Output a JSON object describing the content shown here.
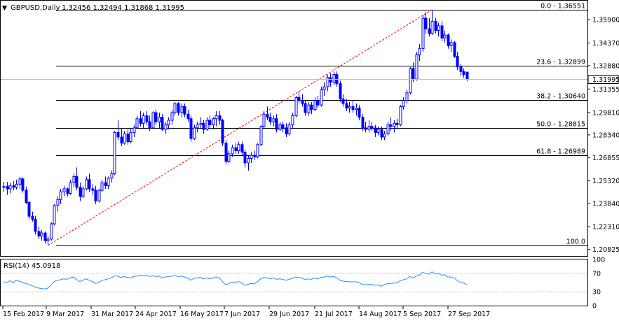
{
  "header": {
    "symbol_label": "GBPUSD,Daily",
    "ohlc": "1.32456 1.32494 1.31868 1.31995",
    "collapse_icon": "triangle-down-icon"
  },
  "rsi_header": {
    "label": "RSI(14) 45.0918"
  },
  "colors": {
    "candle": "#0000ff",
    "trendline": "#ff0000",
    "rsi": "#1e90ff",
    "fib": "#000000",
    "current_price_line": "#c0c0c0"
  },
  "current_price": {
    "value": 1.31995,
    "label": "1.31995"
  },
  "chart_data": {
    "type": "candlestick",
    "symbol": "GBPUSD",
    "timeframe": "Daily",
    "ylim": [
      1.2039,
      1.3715
    ],
    "y_ticks": [
      {
        "value": 1.359,
        "label": "1.35900"
      },
      {
        "value": 1.3437,
        "label": "1.34370"
      },
      {
        "value": 1.3288,
        "label": "1.32880"
      },
      {
        "value": 1.3135,
        "label": "1.31355"
      },
      {
        "value": 1.2981,
        "label": "1.29810"
      },
      {
        "value": 1.2834,
        "label": "1.28340"
      },
      {
        "value": 1.2685,
        "label": "1.26855"
      },
      {
        "value": 1.2532,
        "label": "1.25320"
      },
      {
        "value": 1.2384,
        "label": "1.23840"
      },
      {
        "value": 1.2231,
        "label": "1.22310"
      },
      {
        "value": 1.2082,
        "label": "1.20825"
      }
    ],
    "x_ticks": [
      "15 Feb 2017",
      "9 Mar 2017",
      "31 Mar 2017",
      "24 Apr 2017",
      "16 May 2017",
      "7 Jun 2017",
      "29 Jun 2017",
      "21 Jul 2017",
      "14 Aug 2017",
      "5 Sep 2017",
      "27 Sep 2017"
    ],
    "candles": [
      [
        1.249,
        1.2525,
        1.246,
        1.2495
      ],
      [
        1.2495,
        1.2525,
        1.244,
        1.248
      ],
      [
        1.248,
        1.252,
        1.245,
        1.25
      ],
      [
        1.25,
        1.253,
        1.247,
        1.249
      ],
      [
        1.249,
        1.254,
        1.2475,
        1.251
      ],
      [
        1.251,
        1.256,
        1.248,
        1.2545
      ],
      [
        1.2545,
        1.2555,
        1.2455,
        1.247
      ],
      [
        1.247,
        1.2495,
        1.238,
        1.239
      ],
      [
        1.239,
        1.24,
        1.228,
        1.23
      ],
      [
        1.23,
        1.233,
        1.2265,
        1.228
      ],
      [
        1.228,
        1.23,
        1.218,
        1.22
      ],
      [
        1.22,
        1.223,
        1.215,
        1.217
      ],
      [
        1.217,
        1.221,
        1.214,
        1.219
      ],
      [
        1.219,
        1.22,
        1.212,
        1.214
      ],
      [
        1.214,
        1.217,
        1.211,
        1.215
      ],
      [
        1.215,
        1.226,
        1.214,
        1.225
      ],
      [
        1.225,
        1.238,
        1.224,
        1.237
      ],
      [
        1.237,
        1.243,
        1.233,
        1.241
      ],
      [
        1.241,
        1.248,
        1.238,
        1.246
      ],
      [
        1.246,
        1.25,
        1.243,
        1.248
      ],
      [
        1.248,
        1.249,
        1.243,
        1.245
      ],
      [
        1.245,
        1.254,
        1.244,
        1.252
      ],
      [
        1.252,
        1.258,
        1.249,
        1.256
      ],
      [
        1.256,
        1.262,
        1.247,
        1.249
      ],
      [
        1.249,
        1.252,
        1.24,
        1.243
      ],
      [
        1.243,
        1.25,
        1.242,
        1.248
      ],
      [
        1.248,
        1.256,
        1.247,
        1.254
      ],
      [
        1.254,
        1.258,
        1.246,
        1.248
      ],
      [
        1.248,
        1.251,
        1.244,
        1.247
      ],
      [
        1.247,
        1.25,
        1.238,
        1.24
      ],
      [
        1.24,
        1.248,
        1.239,
        1.247
      ],
      [
        1.247,
        1.254,
        1.246,
        1.252
      ],
      [
        1.252,
        1.256,
        1.248,
        1.25
      ],
      [
        1.25,
        1.256,
        1.248,
        1.255
      ],
      [
        1.255,
        1.26,
        1.252,
        1.258
      ],
      [
        1.258,
        1.286,
        1.257,
        1.285
      ],
      [
        1.285,
        1.293,
        1.28,
        1.282
      ],
      [
        1.282,
        1.288,
        1.276,
        1.278
      ],
      [
        1.278,
        1.286,
        1.277,
        1.284
      ],
      [
        1.284,
        1.287,
        1.277,
        1.279
      ],
      [
        1.279,
        1.288,
        1.278,
        1.285
      ],
      [
        1.285,
        1.29,
        1.282,
        1.288
      ],
      [
        1.288,
        1.296,
        1.287,
        1.294
      ],
      [
        1.294,
        1.299,
        1.289,
        1.291
      ],
      [
        1.291,
        1.298,
        1.288,
        1.296
      ],
      [
        1.296,
        1.299,
        1.29,
        1.292
      ],
      [
        1.292,
        1.296,
        1.286,
        1.288
      ],
      [
        1.288,
        1.299,
        1.287,
        1.298
      ],
      [
        1.298,
        1.3,
        1.29,
        1.292
      ],
      [
        1.292,
        1.298,
        1.288,
        1.295
      ],
      [
        1.295,
        1.297,
        1.286,
        1.287
      ],
      [
        1.287,
        1.292,
        1.284,
        1.29
      ],
      [
        1.29,
        1.295,
        1.287,
        1.293
      ],
      [
        1.293,
        1.3,
        1.29,
        1.298
      ],
      [
        1.298,
        1.305,
        1.296,
        1.304
      ],
      [
        1.304,
        1.305,
        1.296,
        1.298
      ],
      [
        1.298,
        1.304,
        1.295,
        1.302
      ],
      [
        1.302,
        1.304,
        1.295,
        1.297
      ],
      [
        1.297,
        1.3,
        1.292,
        1.294
      ],
      [
        1.294,
        1.296,
        1.279,
        1.281
      ],
      [
        1.281,
        1.29,
        1.28,
        1.288
      ],
      [
        1.288,
        1.292,
        1.285,
        1.29
      ],
      [
        1.29,
        1.295,
        1.288,
        1.291
      ],
      [
        1.291,
        1.293,
        1.284,
        1.287
      ],
      [
        1.287,
        1.295,
        1.286,
        1.293
      ],
      [
        1.293,
        1.296,
        1.288,
        1.29
      ],
      [
        1.29,
        1.295,
        1.287,
        1.294
      ],
      [
        1.294,
        1.299,
        1.289,
        1.296
      ],
      [
        1.296,
        1.299,
        1.29,
        1.293
      ],
      [
        1.293,
        1.294,
        1.276,
        1.278
      ],
      [
        1.278,
        1.28,
        1.264,
        1.266
      ],
      [
        1.266,
        1.273,
        1.265,
        1.271
      ],
      [
        1.271,
        1.277,
        1.269,
        1.275
      ],
      [
        1.275,
        1.278,
        1.271,
        1.273
      ],
      [
        1.273,
        1.279,
        1.271,
        1.277
      ],
      [
        1.277,
        1.279,
        1.27,
        1.272
      ],
      [
        1.272,
        1.274,
        1.262,
        1.265
      ],
      [
        1.265,
        1.27,
        1.26,
        1.268
      ],
      [
        1.268,
        1.272,
        1.265,
        1.27
      ],
      [
        1.27,
        1.273,
        1.267,
        1.269
      ],
      [
        1.269,
        1.278,
        1.268,
        1.277
      ],
      [
        1.277,
        1.29,
        1.276,
        1.289
      ],
      [
        1.289,
        1.299,
        1.287,
        1.297
      ],
      [
        1.297,
        1.302,
        1.293,
        1.295
      ],
      [
        1.295,
        1.298,
        1.29,
        1.292
      ],
      [
        1.292,
        1.296,
        1.289,
        1.294
      ],
      [
        1.294,
        1.297,
        1.285,
        1.287
      ],
      [
        1.287,
        1.292,
        1.286,
        1.29
      ],
      [
        1.29,
        1.292,
        1.285,
        1.288
      ],
      [
        1.288,
        1.291,
        1.282,
        1.284
      ],
      [
        1.284,
        1.292,
        1.283,
        1.29
      ],
      [
        1.29,
        1.298,
        1.288,
        1.296
      ],
      [
        1.296,
        1.309,
        1.295,
        1.308
      ],
      [
        1.308,
        1.312,
        1.304,
        1.306
      ],
      [
        1.306,
        1.31,
        1.302,
        1.304
      ],
      [
        1.304,
        1.306,
        1.296,
        1.298
      ],
      [
        1.298,
        1.305,
        1.296,
        1.303
      ],
      [
        1.303,
        1.305,
        1.297,
        1.3
      ],
      [
        1.3,
        1.308,
        1.299,
        1.306
      ],
      [
        1.306,
        1.309,
        1.301,
        1.303
      ],
      [
        1.303,
        1.315,
        1.302,
        1.313
      ],
      [
        1.313,
        1.318,
        1.309,
        1.315
      ],
      [
        1.315,
        1.323,
        1.312,
        1.321
      ],
      [
        1.321,
        1.324,
        1.315,
        1.318
      ],
      [
        1.318,
        1.325,
        1.316,
        1.323
      ],
      [
        1.323,
        1.325,
        1.315,
        1.317
      ],
      [
        1.317,
        1.319,
        1.305,
        1.307
      ],
      [
        1.307,
        1.31,
        1.302,
        1.304
      ],
      [
        1.304,
        1.307,
        1.299,
        1.301
      ],
      [
        1.301,
        1.305,
        1.298,
        1.302
      ],
      [
        1.302,
        1.306,
        1.298,
        1.3
      ],
      [
        1.3,
        1.304,
        1.296,
        1.301
      ],
      [
        1.301,
        1.303,
        1.293,
        1.295
      ],
      [
        1.295,
        1.297,
        1.286,
        1.288
      ],
      [
        1.288,
        1.292,
        1.285,
        1.287
      ],
      [
        1.287,
        1.293,
        1.285,
        1.289
      ],
      [
        1.289,
        1.292,
        1.286,
        1.288
      ],
      [
        1.288,
        1.29,
        1.282,
        1.285
      ],
      [
        1.285,
        1.289,
        1.283,
        1.287
      ],
      [
        1.287,
        1.289,
        1.28,
        1.282
      ],
      [
        1.282,
        1.286,
        1.28,
        1.284
      ],
      [
        1.284,
        1.292,
        1.283,
        1.29
      ],
      [
        1.29,
        1.295,
        1.286,
        1.289
      ],
      [
        1.289,
        1.293,
        1.285,
        1.291
      ],
      [
        1.291,
        1.294,
        1.287,
        1.29
      ],
      [
        1.29,
        1.303,
        1.289,
        1.302
      ],
      [
        1.302,
        1.308,
        1.3,
        1.306
      ],
      [
        1.306,
        1.313,
        1.304,
        1.311
      ],
      [
        1.311,
        1.328,
        1.31,
        1.327
      ],
      [
        1.327,
        1.331,
        1.318,
        1.32
      ],
      [
        1.32,
        1.338,
        1.319,
        1.336
      ],
      [
        1.336,
        1.343,
        1.332,
        1.34
      ],
      [
        1.34,
        1.362,
        1.338,
        1.36
      ],
      [
        1.36,
        1.364,
        1.35,
        1.353
      ],
      [
        1.353,
        1.36,
        1.348,
        1.35
      ],
      [
        1.35,
        1.3655,
        1.349,
        1.358
      ],
      [
        1.358,
        1.36,
        1.35,
        1.352
      ],
      [
        1.352,
        1.357,
        1.348,
        1.355
      ],
      [
        1.355,
        1.358,
        1.345,
        1.347
      ],
      [
        1.347,
        1.352,
        1.344,
        1.349
      ],
      [
        1.349,
        1.35,
        1.34,
        1.342
      ],
      [
        1.342,
        1.346,
        1.338,
        1.344
      ],
      [
        1.344,
        1.345,
        1.334,
        1.335
      ],
      [
        1.335,
        1.338,
        1.326,
        1.328
      ],
      [
        1.328,
        1.33,
        1.322,
        1.325
      ],
      [
        1.325,
        1.327,
        1.321,
        1.323
      ],
      [
        1.3246,
        1.3249,
        1.3187,
        1.3199
      ]
    ],
    "fibonacci": [
      {
        "level": "0.0",
        "price": 1.36551,
        "label": "0.0 - 1.36551"
      },
      {
        "level": "23.6",
        "price": 1.32899,
        "label": "23.6 - 1.32899"
      },
      {
        "level": "38.2",
        "price": 1.3064,
        "label": "38.2 - 1.30640"
      },
      {
        "level": "50.0",
        "price": 1.28815,
        "label": "50.0 - 1.28815"
      },
      {
        "level": "61.8",
        "price": 1.26989,
        "label": "61.8 - 1.26989"
      },
      {
        "level": "100.0",
        "price": 1.2108,
        "label": "100.0"
      }
    ],
    "trendline": {
      "from_index": 14,
      "from_price": 1.2108,
      "to_index": 135,
      "to_price": 1.36551
    },
    "rsi": {
      "name": "RSI(14)",
      "ylim": [
        0,
        100
      ],
      "y_ticks": [
        {
          "value": 100,
          "label": "100"
        },
        {
          "value": 70,
          "label": "70"
        },
        {
          "value": 30,
          "label": "30"
        },
        {
          "value": 0,
          "label": "0"
        }
      ],
      "levels": [
        70,
        30
      ],
      "values": [
        52,
        50,
        54,
        49,
        55,
        53,
        50,
        48,
        46,
        43,
        40,
        38,
        37,
        36,
        38,
        45,
        52,
        55,
        56,
        58,
        57,
        60,
        62,
        57,
        52,
        55,
        58,
        55,
        52,
        48,
        50,
        55,
        56,
        58,
        60,
        65,
        64,
        61,
        63,
        61,
        60,
        63,
        64,
        66,
        65,
        66,
        63,
        65,
        63,
        64,
        60,
        62,
        63,
        64,
        65,
        63,
        64,
        62,
        60,
        55,
        59,
        60,
        61,
        58,
        60,
        58,
        60,
        62,
        60,
        52,
        45,
        48,
        51,
        50,
        52,
        50,
        44,
        46,
        48,
        47,
        52,
        58,
        61,
        60,
        58,
        60,
        57,
        58,
        57,
        55,
        57,
        59,
        62,
        61,
        60,
        56,
        58,
        57,
        60,
        58,
        61,
        62,
        64,
        62,
        63,
        60,
        55,
        53,
        52,
        52,
        51,
        52,
        50,
        46,
        45,
        46,
        46,
        44,
        45,
        42,
        45,
        48,
        48,
        49,
        49,
        54,
        56,
        58,
        63,
        60,
        64,
        66,
        72,
        70,
        68,
        73,
        69,
        70,
        66,
        67,
        62,
        62,
        60,
        54,
        50,
        49,
        45
      ]
    }
  }
}
